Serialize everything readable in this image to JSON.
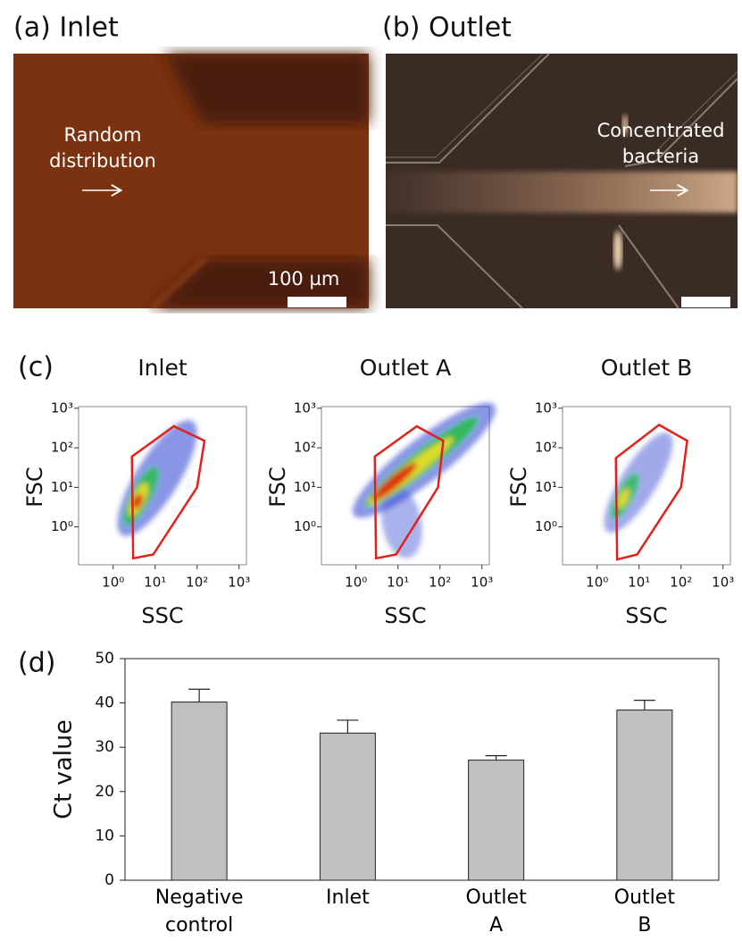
{
  "panels": [
    {
      "label": "(a) Inlet",
      "annotation": "Random\ndistribution",
      "scale_bar": "100 µm"
    },
    {
      "label": "(b) Outlet",
      "annotation": "Concentrated\nbacteria"
    }
  ],
  "panel_c_label": "(c)",
  "chart_data": [
    {
      "type": "density",
      "title": "Inlet",
      "x_label": "SSC",
      "y_label": "FSC",
      "log_scale": true,
      "xlim": [
        0.15,
        1500
      ],
      "ylim": [
        0.11,
        1100
      ],
      "xticks": [
        {
          "value": 1,
          "label": "10⁰"
        },
        {
          "value": 10,
          "label": "10¹"
        },
        {
          "value": 100,
          "label": "10²"
        },
        {
          "value": 1000,
          "label": "10³"
        }
      ],
      "yticks": [
        {
          "value": 1,
          "label": "10⁰"
        },
        {
          "value": 10,
          "label": "10¹"
        },
        {
          "value": 100,
          "label": "10²"
        },
        {
          "value": 1000,
          "label": "10³"
        }
      ],
      "gate": {
        "color": "#e3211c",
        "x": [
          2.8,
          28,
          150,
          100,
          9,
          3
        ],
        "y": [
          60,
          350,
          150,
          10,
          0.2,
          0.16
        ]
      }
    },
    {
      "type": "density",
      "title": "Outlet A",
      "x_label": "SSC",
      "y_label": "FSC",
      "log_scale": true,
      "xlim": [
        0.15,
        1500
      ],
      "ylim": [
        0.11,
        1100
      ],
      "xticks": [
        {
          "value": 1,
          "label": "10⁰"
        },
        {
          "value": 10,
          "label": "10¹"
        },
        {
          "value": 100,
          "label": "10²"
        },
        {
          "value": 1000,
          "label": "10³"
        }
      ],
      "yticks": [
        {
          "value": 1,
          "label": "10⁰"
        },
        {
          "value": 10,
          "label": "10¹"
        },
        {
          "value": 100,
          "label": "10²"
        },
        {
          "value": 1000,
          "label": "10³"
        }
      ],
      "gate": {
        "color": "#e3211c",
        "x": [
          2.8,
          28,
          120,
          90,
          9,
          3
        ],
        "y": [
          60,
          350,
          150,
          10,
          0.2,
          0.16
        ]
      }
    },
    {
      "type": "density",
      "title": "Outlet B",
      "x_label": "SSC",
      "y_label": "FSC",
      "log_scale": true,
      "xlim": [
        0.15,
        1500
      ],
      "ylim": [
        0.11,
        1100
      ],
      "xticks": [
        {
          "value": 1,
          "label": "10⁰"
        },
        {
          "value": 10,
          "label": "10¹"
        },
        {
          "value": 100,
          "label": "10²"
        },
        {
          "value": 1000,
          "label": "10³"
        }
      ],
      "yticks": [
        {
          "value": 1,
          "label": "10⁰"
        },
        {
          "value": 10,
          "label": "10¹"
        },
        {
          "value": 100,
          "label": "10²"
        },
        {
          "value": 1000,
          "label": "10³"
        }
      ],
      "gate": {
        "color": "#e3211c",
        "x": [
          2.8,
          30,
          140,
          100,
          9,
          3
        ],
        "y": [
          55,
          380,
          150,
          10,
          0.2,
          0.15
        ]
      }
    },
    {
      "type": "bar",
      "panel_label": "(d)",
      "y_label": "Ct value",
      "categories": [
        "Negative\ncontrol",
        "Inlet",
        "Outlet\nA",
        "Outlet\nB"
      ],
      "values": [
        40.2,
        33.2,
        27.1,
        38.4
      ],
      "errors": [
        2.9,
        2.9,
        1.0,
        2.2
      ],
      "color": "#c0c0c0",
      "ylim": [
        0,
        50
      ],
      "yticks": [
        0,
        10,
        20,
        30,
        40,
        50
      ]
    }
  ]
}
